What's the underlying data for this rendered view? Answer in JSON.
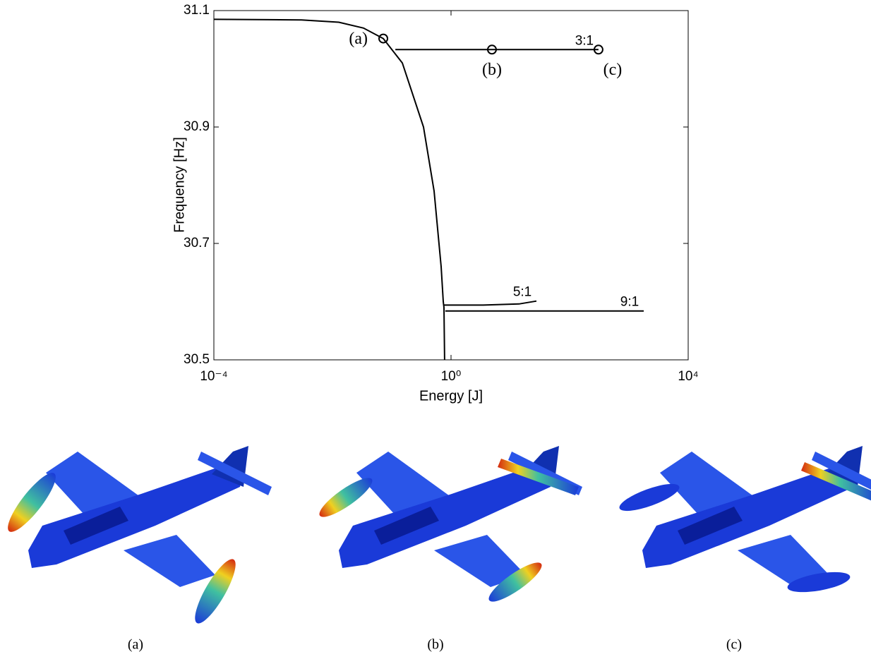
{
  "chart_data": {
    "type": "line",
    "xlabel": "Energy [J]",
    "ylabel": "Frequency [Hz]",
    "xscale": "log",
    "xlim": [
      0.0001,
      10000
    ],
    "xticks": [
      {
        "value": 0.0001,
        "label": "10⁻⁴"
      },
      {
        "value": 1,
        "label": "10⁰"
      },
      {
        "value": 10000,
        "label": "10⁴"
      }
    ],
    "ylim": [
      30.5,
      31.1
    ],
    "yticks": [
      30.5,
      30.7,
      30.9,
      31.1
    ],
    "grid": false,
    "series": [
      {
        "color": "#000000",
        "x": [
          0.0001,
          0.003,
          0.0128,
          0.0334,
          0.072,
          0.151,
          0.343,
          0.518,
          0.681,
          0.74,
          0.76,
          0.78
        ],
        "values": [
          31.085,
          31.084,
          31.08,
          31.07,
          31.052,
          31.01,
          30.9,
          30.79,
          30.66,
          30.6,
          30.59,
          30.5
        ]
      },
      {
        "name": "3:1",
        "color": "#000000",
        "x": [
          0.115,
          4.9,
          307
        ],
        "values": [
          31.033,
          31.033,
          31.033
        ]
      },
      {
        "name": "5:1",
        "color": "#000000",
        "x": [
          0.74,
          3.5,
          14,
          27.6
        ],
        "values": [
          30.594,
          30.594,
          30.596,
          30.601
        ]
      },
      {
        "name": "9:1",
        "color": "#000000",
        "x": [
          0.8,
          1778
        ],
        "values": [
          30.584,
          30.584
        ]
      }
    ],
    "markers": {
      "x": [
        0.072,
        4.9,
        307
      ],
      "values": [
        31.052,
        31.033,
        31.033
      ],
      "labels": [
        "(a)",
        "(b)",
        "(c)"
      ]
    }
  },
  "figures": [
    {
      "caption": "(a)"
    },
    {
      "caption": "(b)"
    },
    {
      "caption": "(c)"
    }
  ]
}
